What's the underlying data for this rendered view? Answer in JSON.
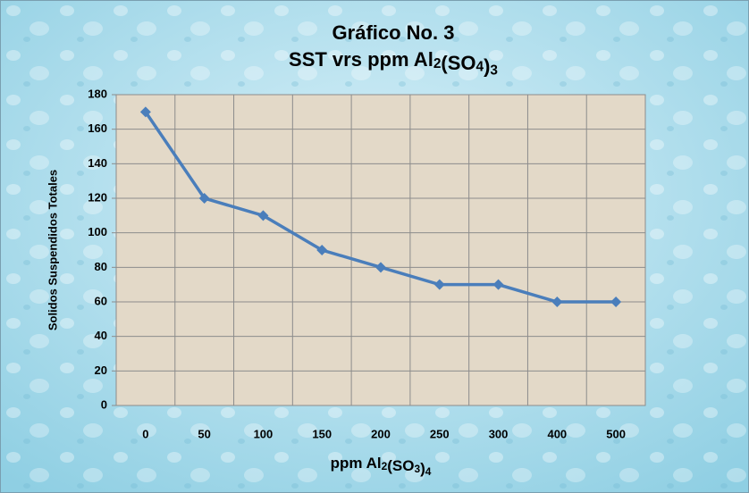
{
  "chart_data": {
    "type": "line",
    "title": "Gráfico  No. 3",
    "subtitle": "SST vrs ppm Al2(SO4)3",
    "x_label": "ppm Al2(SO3)4",
    "y_label": "Solidos Suspendidos Totales",
    "categories": [
      "0",
      "50",
      "100",
      "150",
      "200",
      "250",
      "300",
      "400",
      "500"
    ],
    "values": [
      170,
      120,
      110,
      90,
      80,
      70,
      70,
      60,
      60
    ],
    "color": "#4a7ebb",
    "ylim": [
      0,
      180
    ],
    "yticks": [
      0,
      20,
      40,
      60,
      80,
      100,
      120,
      140,
      160,
      180
    ],
    "grid": true
  }
}
